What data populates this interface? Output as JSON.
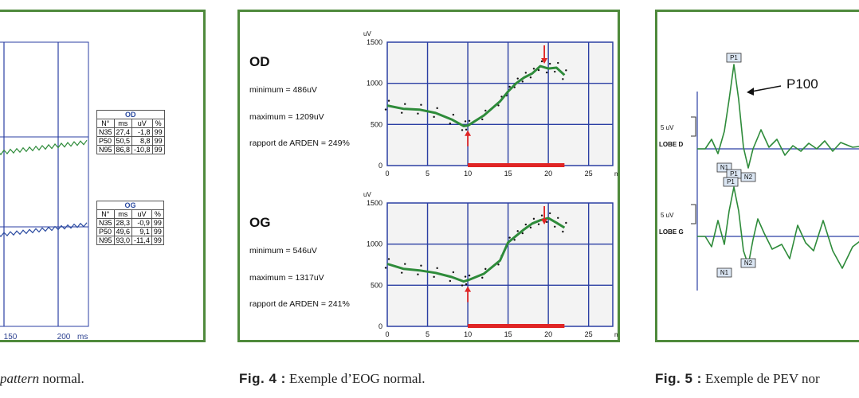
{
  "colors": {
    "frame": "#4f8a3c",
    "trace": "#2e8b3a",
    "blue": "#2a4aa0",
    "grid": "#2b3fa3",
    "marker": "#e02525",
    "plot_bg": "#f3f3f3"
  },
  "figure3": {
    "caption_tail_italic": "pattern",
    "caption_tail": " normal.",
    "x_ticks": [
      "150",
      "200"
    ],
    "x_unit": "ms",
    "tables": [
      {
        "title": "OD",
        "headers": [
          "N°",
          "ms",
          "uV",
          "%"
        ],
        "rows": [
          [
            "N35",
            "27,4",
            "-1,8",
            "99"
          ],
          [
            "P50",
            "50,5",
            "8,8",
            "99"
          ],
          [
            "N95",
            "86,8",
            "-10,8",
            "99"
          ]
        ]
      },
      {
        "title": "OG",
        "headers": [
          "N°",
          "ms",
          "uV",
          "%"
        ],
        "rows": [
          [
            "N35",
            "28,3",
            "-0,9",
            "99"
          ],
          [
            "P50",
            "49,6",
            "9,1",
            "99"
          ],
          [
            "N95",
            "93,0",
            "-11,4",
            "99"
          ]
        ]
      }
    ]
  },
  "figure4": {
    "caption_label": "Fig. 4 :",
    "caption_text": " Exemple d’EOG normal.",
    "panels": [
      {
        "eye": "OD",
        "minimum": "minimum = 486uV",
        "maximum": "maximum = 1209uV",
        "ratio": "rapport de ARDEN = 249%"
      },
      {
        "eye": "OG",
        "minimum": "minimum = 546uV",
        "maximum": "maximum = 1317uV",
        "ratio": "rapport de ARDEN = 241%"
      }
    ]
  },
  "figure5": {
    "caption_label": "Fig. 5 :",
    "caption_text": " Exemple de PEV nor",
    "annotation": "P100",
    "rows": [
      {
        "scale": "5 uV",
        "lead": "LOBE D",
        "peaks": [
          "P1",
          "N1",
          "N2"
        ]
      },
      {
        "scale": "5 uV",
        "lead": "LOBE G",
        "peaks": [
          "P1",
          "N1",
          "N2"
        ]
      }
    ]
  },
  "chart_data": [
    {
      "type": "line",
      "title": "OD",
      "xlabel": "mn",
      "ylabel": "uV",
      "xlim": [
        0,
        28
      ],
      "ylim": [
        0,
        1500
      ],
      "x_ticks": [
        0,
        5,
        10,
        15,
        20,
        25
      ],
      "y_ticks": [
        0,
        500,
        1000,
        1500
      ],
      "grid": true,
      "series": [
        {
          "x": [
            0,
            2,
            4,
            6,
            8,
            9.5,
            10,
            12,
            14,
            15,
            16,
            17,
            18,
            19,
            20,
            21,
            22
          ],
          "y": [
            730,
            690,
            680,
            640,
            560,
            480,
            486,
            610,
            780,
            900,
            1000,
            1070,
            1120,
            1209,
            1180,
            1190,
            1100
          ]
        }
      ],
      "min_marker_x": 10,
      "max_marker_x": 19.5,
      "dark_period": [
        10,
        22
      ]
    },
    {
      "type": "line",
      "title": "OG",
      "xlabel": "mn",
      "ylabel": "uV",
      "xlim": [
        0,
        28
      ],
      "ylim": [
        0,
        1500
      ],
      "x_ticks": [
        0,
        5,
        10,
        15,
        20,
        25
      ],
      "y_ticks": [
        0,
        500,
        1000,
        1500
      ],
      "grid": true,
      "series": [
        {
          "x": [
            0,
            2,
            4,
            6,
            8,
            9.5,
            10,
            12,
            14,
            15,
            16,
            17,
            18,
            19,
            20,
            21,
            22
          ],
          "y": [
            760,
            700,
            680,
            650,
            600,
            546,
            560,
            640,
            800,
            1020,
            1100,
            1180,
            1250,
            1290,
            1317,
            1260,
            1200
          ]
        }
      ],
      "min_marker_x": 10,
      "max_marker_x": 19.5,
      "dark_period": [
        10,
        22
      ]
    }
  ]
}
